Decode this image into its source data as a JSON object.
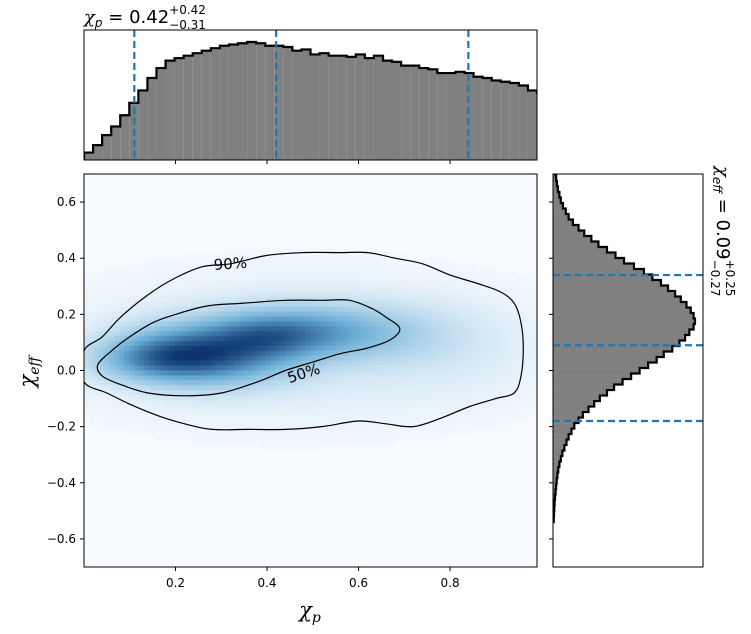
{
  "chart_data": {
    "type": "corner-plot",
    "colors": {
      "hist_fill": "#808080",
      "hist_edge": "#000000",
      "quantile_line": "#1f77b4",
      "density_low": "#f7fbff",
      "density_mid": "#6baed6",
      "density_high": "#08306b",
      "contour": "#000000"
    },
    "top_histogram": {
      "parameter": "chi_p",
      "title": {
        "symbol": "χ",
        "sub": "p",
        "eq": " = 0.42",
        "plus": "+0.42",
        "minus": "−0.31"
      },
      "xlim": [
        0.0,
        0.99
      ],
      "bin_width": 0.0198,
      "counts": [
        0.06,
        0.12,
        0.2,
        0.27,
        0.36,
        0.46,
        0.56,
        0.66,
        0.74,
        0.8,
        0.82,
        0.84,
        0.86,
        0.88,
        0.9,
        0.92,
        0.93,
        0.94,
        0.95,
        0.94,
        0.92,
        0.92,
        0.91,
        0.88,
        0.89,
        0.85,
        0.86,
        0.84,
        0.84,
        0.83,
        0.85,
        0.82,
        0.84,
        0.8,
        0.79,
        0.76,
        0.76,
        0.74,
        0.73,
        0.7,
        0.7,
        0.71,
        0.7,
        0.67,
        0.66,
        0.64,
        0.63,
        0.62,
        0.6,
        0.56,
        0.54,
        0.52,
        0.48,
        0.44,
        0.4,
        0.34,
        0.28,
        0.24,
        0.2,
        0.16,
        0.12,
        0.08,
        0.06,
        0.04,
        0.03,
        0.02,
        0.01,
        0.01,
        0.01,
        0.01
      ],
      "quantiles": [
        0.11,
        0.42,
        0.84
      ]
    },
    "right_histogram": {
      "parameter": "chi_eff",
      "title": {
        "symbol": "χ",
        "sub": "eff",
        "eq": " = 0.09",
        "plus": "+0.25",
        "minus": "−0.27"
      },
      "ylim": [
        -0.7,
        0.7
      ],
      "bin_width": 0.0196,
      "centers_from": -0.54,
      "counts": [
        0.005,
        0.007,
        0.009,
        0.011,
        0.014,
        0.018,
        0.022,
        0.026,
        0.031,
        0.037,
        0.045,
        0.055,
        0.066,
        0.08,
        0.095,
        0.11,
        0.13,
        0.15,
        0.18,
        0.21,
        0.25,
        0.29,
        0.33,
        0.38,
        0.43,
        0.49,
        0.55,
        0.61,
        0.67,
        0.73,
        0.78,
        0.84,
        0.89,
        0.93,
        0.96,
        0.99,
        1.0,
        0.99,
        0.97,
        0.94,
        0.9,
        0.86,
        0.81,
        0.76,
        0.7,
        0.64,
        0.57,
        0.5,
        0.44,
        0.38,
        0.32,
        0.27,
        0.22,
        0.18,
        0.14,
        0.11,
        0.09,
        0.07,
        0.055,
        0.045,
        0.035,
        0.028,
        0.022,
        0.017,
        0.013,
        0.01,
        0.008,
        0.006,
        0.005,
        0.004,
        0.003
      ],
      "quantiles": [
        -0.18,
        0.09,
        0.34
      ]
    },
    "density": {
      "xlim": [
        0.0,
        0.99
      ],
      "ylim": [
        -0.7,
        0.7
      ],
      "x_ticks": [
        0.2,
        0.4,
        0.6,
        0.8
      ],
      "x_tick_labels": [
        "0.2",
        "0.4",
        "0.6",
        "0.8"
      ],
      "y_ticks": [
        -0.6,
        -0.4,
        -0.2,
        0.0,
        0.2,
        0.4,
        0.6
      ],
      "y_tick_labels": [
        "−0.6",
        "−0.4",
        "−0.2",
        "0.0",
        "0.2",
        "0.4",
        "0.6"
      ],
      "xlabel": {
        "symbol": "χ",
        "sub": "p"
      },
      "ylabel": {
        "symbol": "χ",
        "sub": "eff"
      },
      "peak": {
        "x": 0.27,
        "y": 0.06
      },
      "contours": [
        {
          "label": "90%",
          "label_at": {
            "x": 0.32,
            "y": 0.38
          },
          "points": [
            [
              0.0,
              0.07
            ],
            [
              0.04,
              0.12
            ],
            [
              0.08,
              0.19
            ],
            [
              0.14,
              0.27
            ],
            [
              0.2,
              0.33
            ],
            [
              0.26,
              0.37
            ],
            [
              0.32,
              0.38
            ],
            [
              0.4,
              0.41
            ],
            [
              0.48,
              0.42
            ],
            [
              0.56,
              0.42
            ],
            [
              0.62,
              0.42
            ],
            [
              0.68,
              0.4
            ],
            [
              0.74,
              0.38
            ],
            [
              0.8,
              0.34
            ],
            [
              0.86,
              0.31
            ],
            [
              0.91,
              0.28
            ],
            [
              0.94,
              0.24
            ],
            [
              0.955,
              0.17
            ],
            [
              0.96,
              0.08
            ],
            [
              0.955,
              -0.02
            ],
            [
              0.94,
              -0.08
            ],
            [
              0.9,
              -0.1
            ],
            [
              0.84,
              -0.13
            ],
            [
              0.78,
              -0.17
            ],
            [
              0.72,
              -0.2
            ],
            [
              0.66,
              -0.19
            ],
            [
              0.6,
              -0.18
            ],
            [
              0.52,
              -0.2
            ],
            [
              0.44,
              -0.21
            ],
            [
              0.36,
              -0.21
            ],
            [
              0.28,
              -0.21
            ],
            [
              0.22,
              -0.19
            ],
            [
              0.16,
              -0.16
            ],
            [
              0.1,
              -0.12
            ],
            [
              0.05,
              -0.08
            ],
            [
              0.0,
              -0.04
            ]
          ]
        },
        {
          "label": "50%",
          "label_at": {
            "x": 0.48,
            "y": -0.01
          },
          "points": [
            [
              0.03,
              0.02
            ],
            [
              0.06,
              0.07
            ],
            [
              0.1,
              0.12
            ],
            [
              0.15,
              0.17
            ],
            [
              0.2,
              0.2
            ],
            [
              0.27,
              0.23
            ],
            [
              0.35,
              0.24
            ],
            [
              0.44,
              0.25
            ],
            [
              0.52,
              0.25
            ],
            [
              0.58,
              0.25
            ],
            [
              0.63,
              0.22
            ],
            [
              0.66,
              0.19
            ],
            [
              0.69,
              0.15
            ],
            [
              0.67,
              0.11
            ],
            [
              0.62,
              0.08
            ],
            [
              0.56,
              0.06
            ],
            [
              0.5,
              0.03
            ],
            [
              0.44,
              0.0
            ],
            [
              0.38,
              -0.04
            ],
            [
              0.3,
              -0.08
            ],
            [
              0.22,
              -0.09
            ],
            [
              0.14,
              -0.08
            ],
            [
              0.08,
              -0.05
            ],
            [
              0.04,
              -0.02
            ]
          ]
        }
      ]
    }
  }
}
